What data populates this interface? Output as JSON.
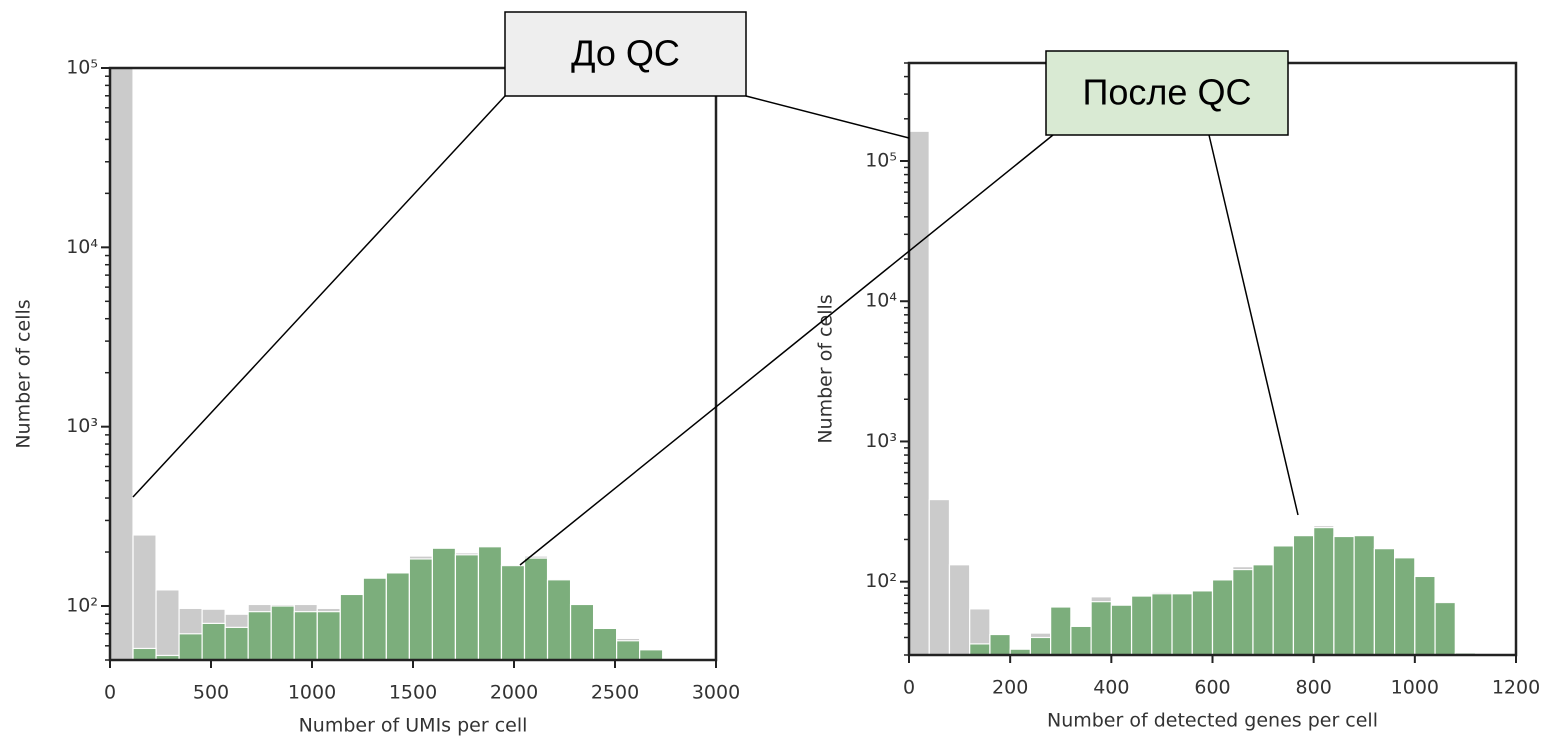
{
  "chart_data": [
    {
      "type": "histogram",
      "xlabel": "Number of UMIs per cell",
      "ylabel": "Number of cells",
      "yscale": "log",
      "bins": [
        0,
        114,
        228,
        342,
        456,
        570,
        684,
        798,
        912,
        1026,
        1140,
        1254,
        1368,
        1482,
        1596,
        1710,
        1824,
        1938,
        2052,
        2166,
        2280,
        2394,
        2508,
        2622,
        2736
      ],
      "series": [
        {
          "color": "#c9c9c9",
          "values": [
            100000,
            249,
            123,
            97,
            96,
            90,
            102,
            102,
            102,
            97,
            116,
            143,
            153,
            190,
            210,
            198,
            216,
            170,
            190,
            141,
            102,
            75,
            66,
            57
          ]
        },
        {
          "color": "#78ad78",
          "values": [
            0,
            58,
            53,
            70,
            80,
            76,
            93,
            100,
            93,
            93,
            116,
            143,
            153,
            183,
            210,
            193,
            214,
            168,
            185,
            140,
            102,
            75,
            64,
            57
          ]
        }
      ],
      "xlim": [
        0,
        3000
      ],
      "xticks": [
        0,
        500,
        1000,
        1500,
        2000,
        2500,
        3000
      ],
      "ylim": [
        50,
        100000
      ],
      "yticks": [
        {
          "value": 100,
          "label": "10²"
        },
        {
          "value": 1000,
          "label": "10³"
        },
        {
          "value": 10000,
          "label": "10⁴"
        },
        {
          "value": 100000,
          "label": "10⁵"
        }
      ]
    },
    {
      "type": "histogram",
      "xlabel": "Number of detected genes per cell",
      "ylabel": "Number of cells",
      "yscale": "log",
      "bins": [
        0,
        40,
        80,
        120,
        160,
        200,
        240,
        280,
        320,
        360,
        400,
        440,
        480,
        520,
        560,
        600,
        640,
        680,
        720,
        760,
        800,
        840,
        880,
        920,
        960,
        1000,
        1040,
        1080,
        1120
      ],
      "series": [
        {
          "color": "#c9c9c9",
          "values": [
            163000,
            385,
            132,
            64,
            42,
            33,
            43,
            66,
            48,
            78,
            68,
            79,
            84,
            82,
            86,
            103,
            128,
            132,
            180,
            213,
            251,
            210,
            213,
            172,
            148,
            109,
            72,
            31
          ]
        },
        {
          "color": "#78ad78",
          "values": [
            0,
            0,
            0,
            36,
            42,
            33,
            40,
            66,
            48,
            72,
            68,
            79,
            82,
            82,
            86,
            103,
            122,
            132,
            180,
            213,
            243,
            210,
            213,
            172,
            148,
            109,
            71,
            31
          ]
        }
      ],
      "xlim": [
        0,
        1200
      ],
      "xticks": [
        0,
        200,
        400,
        600,
        800,
        1000,
        1200
      ],
      "ylim": [
        30,
        500000
      ],
      "yticks": [
        {
          "value": 100,
          "label": "10²"
        },
        {
          "value": 1000,
          "label": "10³"
        },
        {
          "value": 10000,
          "label": "10⁴"
        },
        {
          "value": 100000,
          "label": "10⁵"
        }
      ]
    }
  ],
  "annotations": [
    {
      "text": "До QC",
      "color": "#eeeeee"
    },
    {
      "text": "После QC",
      "color": "#d9ead3"
    }
  ]
}
